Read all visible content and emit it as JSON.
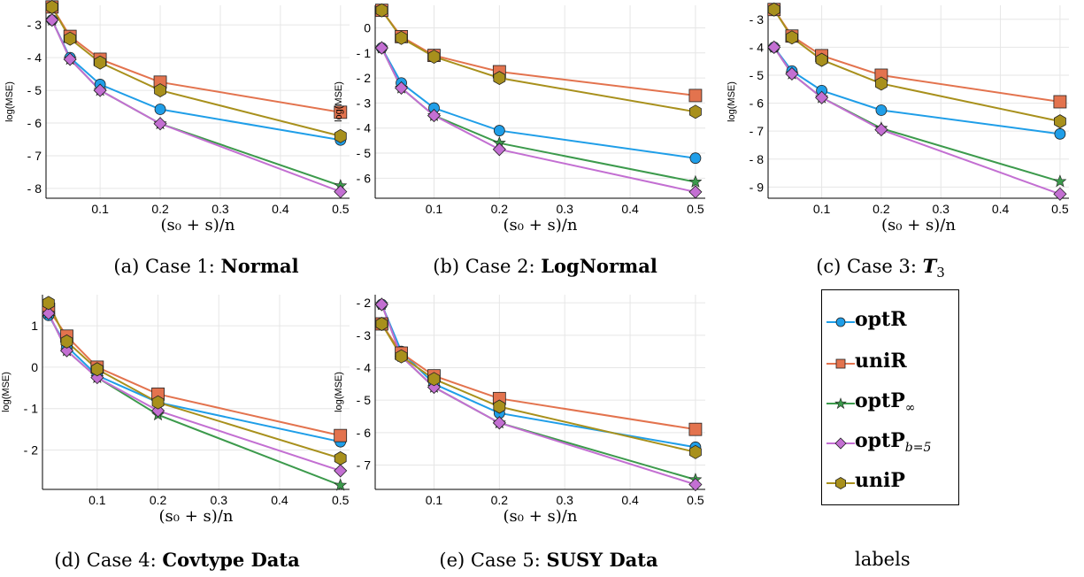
{
  "legend": {
    "series": [
      {
        "name": "optR",
        "color": "#1f9ee8",
        "marker": "circle"
      },
      {
        "name": "uniR",
        "color": "#e3734e",
        "marker": "square"
      },
      {
        "name": "optP",
        "sub": "∞",
        "color": "#3c9a4c",
        "marker": "star"
      },
      {
        "name": "optP",
        "sub": "b=5",
        "color": "#c36fd2",
        "marker": "diamond"
      },
      {
        "name": "uniP",
        "color": "#a8901c",
        "marker": "hexagon"
      }
    ],
    "caption": "labels"
  },
  "captions": [
    {
      "prefix": "(a) Case 1: ",
      "bold": "Normal"
    },
    {
      "prefix": "(b) Case 2: ",
      "bold": "LogNormal"
    },
    {
      "prefix": "(c) Case 3: ",
      "bold": "T",
      "sub": "3"
    },
    {
      "prefix": "(d) Case 4: ",
      "bold": "Covtype Data"
    },
    {
      "prefix": "(e) Case 5: ",
      "bold": "SUSY Data"
    }
  ],
  "chart_data": [
    {
      "type": "line",
      "xlabel": "(s₀ + s)/n",
      "ylabel": "log(MSE)",
      "x": [
        0.02,
        0.05,
        0.1,
        0.2,
        0.5
      ],
      "xticks": [
        0.1,
        0.2,
        0.3,
        0.4,
        0.5
      ],
      "xtick_labels": [
        "0.1",
        "0.2",
        "0.3",
        "0.4",
        "0.5"
      ],
      "xlim": [
        0.01,
        0.515
      ],
      "ylim": [
        -8.3,
        -2.4
      ],
      "yticks": [
        -3,
        -4,
        -5,
        -6,
        -7,
        -8
      ],
      "ytick_labels": [
        "- 3",
        "- 4",
        "- 5",
        "- 6",
        "- 7",
        "- 8"
      ],
      "series": [
        {
          "name": "optR",
          "values": [
            -2.85,
            -4.0,
            -4.82,
            -5.58,
            -6.52
          ]
        },
        {
          "name": "uniR",
          "values": [
            -2.45,
            -3.35,
            -4.05,
            -4.75,
            -5.67
          ]
        },
        {
          "name": "optP∞",
          "values": [
            -2.85,
            -4.05,
            -5.0,
            -6.02,
            -7.92
          ]
        },
        {
          "name": "optPb=5",
          "values": [
            -2.85,
            -4.05,
            -5.0,
            -6.02,
            -8.1
          ]
        },
        {
          "name": "uniP",
          "values": [
            -2.45,
            -3.42,
            -4.15,
            -5.0,
            -6.4
          ]
        }
      ]
    },
    {
      "type": "line",
      "xlabel": "(s₀ + s)/n",
      "ylabel": "log(MSE)",
      "x": [
        0.02,
        0.05,
        0.1,
        0.2,
        0.5
      ],
      "xticks": [
        0.1,
        0.2,
        0.3,
        0.4,
        0.5
      ],
      "xtick_labels": [
        "0.1",
        "0.2",
        "0.3",
        "0.4",
        "0.5"
      ],
      "xlim": [
        0.01,
        0.515
      ],
      "ylim": [
        -6.8,
        0.9
      ],
      "yticks": [
        0,
        -1,
        -2,
        -3,
        -4,
        -5,
        -6
      ],
      "ytick_labels": [
        "0",
        "- 1",
        "- 2",
        "- 3",
        "- 4",
        "- 5",
        "- 6"
      ],
      "series": [
        {
          "name": "optR",
          "values": [
            -0.8,
            -2.2,
            -3.2,
            -4.1,
            -5.2
          ]
        },
        {
          "name": "uniR",
          "values": [
            0.7,
            -0.35,
            -1.1,
            -1.75,
            -2.7
          ]
        },
        {
          "name": "optP∞",
          "values": [
            -0.8,
            -2.4,
            -3.5,
            -4.6,
            -6.15
          ]
        },
        {
          "name": "optPb=5",
          "values": [
            -0.8,
            -2.4,
            -3.5,
            -4.85,
            -6.55
          ]
        },
        {
          "name": "uniP",
          "values": [
            0.7,
            -0.4,
            -1.15,
            -2.0,
            -3.35
          ]
        }
      ]
    },
    {
      "type": "line",
      "xlabel": "(s₀ + s)/n",
      "ylabel": "log(MSE)",
      "x": [
        0.02,
        0.05,
        0.1,
        0.2,
        0.5
      ],
      "xticks": [
        0.1,
        0.2,
        0.3,
        0.4,
        0.5
      ],
      "xtick_labels": [
        "0.1",
        "0.2",
        "0.3",
        "0.4",
        "0.5"
      ],
      "xlim": [
        0.01,
        0.515
      ],
      "ylim": [
        -9.4,
        -2.5
      ],
      "yticks": [
        -3,
        -4,
        -5,
        -6,
        -7,
        -8,
        -9
      ],
      "ytick_labels": [
        "- 3",
        "- 4",
        "- 5",
        "- 6",
        "- 7",
        "- 8",
        "- 9"
      ],
      "series": [
        {
          "name": "optR",
          "values": [
            -4.0,
            -4.85,
            -5.55,
            -6.25,
            -7.1
          ]
        },
        {
          "name": "uniR",
          "values": [
            -2.65,
            -3.6,
            -4.3,
            -5.0,
            -5.95
          ]
        },
        {
          "name": "optP∞",
          "values": [
            -4.0,
            -4.95,
            -5.8,
            -6.9,
            -8.8
          ]
        },
        {
          "name": "optPb=5",
          "values": [
            -4.0,
            -4.95,
            -5.8,
            -6.95,
            -9.25
          ]
        },
        {
          "name": "uniP",
          "values": [
            -2.65,
            -3.65,
            -4.45,
            -5.3,
            -6.65
          ]
        }
      ]
    },
    {
      "type": "line",
      "xlabel": "(s₀ + s)/n",
      "ylabel": "log(MSE)",
      "x": [
        0.02,
        0.05,
        0.1,
        0.2,
        0.5
      ],
      "xticks": [
        0.1,
        0.2,
        0.3,
        0.4,
        0.5
      ],
      "xtick_labels": [
        "0.1",
        "0.2",
        "0.3",
        "0.4",
        "0.5"
      ],
      "xlim": [
        0.01,
        0.515
      ],
      "ylim": [
        -2.95,
        1.75
      ],
      "yticks": [
        1,
        0,
        -1,
        -2
      ],
      "ytick_labels": [
        "1",
        "0",
        "- 1",
        "- 2"
      ],
      "series": [
        {
          "name": "optR",
          "values": [
            1.25,
            0.5,
            -0.2,
            -0.85,
            -1.8
          ]
        },
        {
          "name": "uniR",
          "values": [
            1.4,
            0.75,
            0.0,
            -0.65,
            -1.65
          ]
        },
        {
          "name": "optP∞",
          "values": [
            1.3,
            0.4,
            -0.25,
            -1.15,
            -2.85
          ]
        },
        {
          "name": "optPb=5",
          "values": [
            1.3,
            0.4,
            -0.25,
            -1.05,
            -2.5
          ]
        },
        {
          "name": "uniP",
          "values": [
            1.55,
            0.62,
            -0.05,
            -0.85,
            -2.2
          ]
        }
      ]
    },
    {
      "type": "line",
      "xlabel": "(s₀ + s)/n",
      "ylabel": "log(MSE)",
      "x": [
        0.02,
        0.05,
        0.1,
        0.2,
        0.5
      ],
      "xticks": [
        0.1,
        0.2,
        0.3,
        0.4,
        0.5
      ],
      "xtick_labels": [
        "0.1",
        "0.2",
        "0.3",
        "0.4",
        "0.5"
      ],
      "xlim": [
        0.01,
        0.515
      ],
      "ylim": [
        -7.75,
        -1.75
      ],
      "yticks": [
        -2,
        -3,
        -4,
        -5,
        -6,
        -7
      ],
      "ytick_labels": [
        "- 2",
        "- 3",
        "- 4",
        "- 5",
        "- 6",
        "- 7"
      ],
      "series": [
        {
          "name": "optR",
          "values": [
            -2.05,
            -3.5,
            -4.5,
            -5.4,
            -6.45
          ]
        },
        {
          "name": "uniR",
          "values": [
            -2.65,
            -3.55,
            -4.25,
            -4.95,
            -5.9
          ]
        },
        {
          "name": "optP∞",
          "values": [
            -2.05,
            -3.65,
            -4.6,
            -5.7,
            -7.45
          ]
        },
        {
          "name": "optPb=5",
          "values": [
            -2.05,
            -3.65,
            -4.6,
            -5.7,
            -7.6
          ]
        },
        {
          "name": "uniP",
          "values": [
            -2.65,
            -3.65,
            -4.35,
            -5.2,
            -6.6
          ]
        }
      ]
    }
  ]
}
